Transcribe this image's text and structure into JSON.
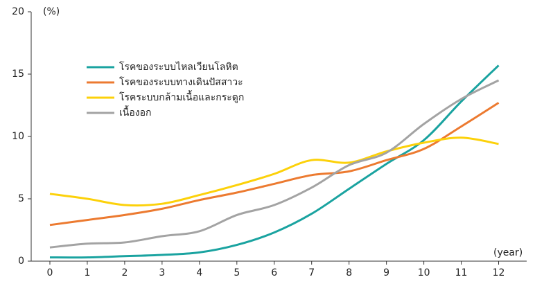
{
  "chart_data": {
    "type": "line",
    "y_label": "(%)",
    "x_label": "(year)",
    "x": [
      0,
      1,
      2,
      3,
      4,
      5,
      6,
      7,
      8,
      9,
      10,
      11,
      12
    ],
    "xlim": [
      -0.5,
      12.75
    ],
    "xticks": [
      0,
      1,
      2,
      3,
      4,
      5,
      6,
      7,
      8,
      9,
      10,
      11,
      12
    ],
    "ylim": [
      0,
      20
    ],
    "yticks": [
      0,
      5,
      10,
      15,
      20
    ],
    "legend": "upper-left",
    "series": [
      {
        "name": "โรคของระบบไหลเวียนโลหิต",
        "color": "#1aa3a0",
        "values": [
          0.3,
          0.3,
          0.4,
          0.5,
          0.7,
          1.3,
          2.3,
          3.8,
          5.8,
          7.8,
          9.7,
          12.8,
          15.7
        ]
      },
      {
        "name": "โรคของระบบทางเดินปัสสาวะ",
        "color": "#ec7a30",
        "values": [
          2.9,
          3.3,
          3.7,
          4.2,
          4.9,
          5.5,
          6.2,
          6.9,
          7.2,
          8.1,
          9.0,
          10.8,
          12.7
        ]
      },
      {
        "name": "โรคระบบกล้ามเนื้อและกระดูก",
        "color": "#fcd10a",
        "values": [
          5.4,
          5.0,
          4.5,
          4.6,
          5.3,
          6.1,
          7.0,
          8.1,
          7.9,
          8.8,
          9.5,
          9.9,
          9.4
        ]
      },
      {
        "name": "เนื้องอก",
        "color": "#a3a3a3",
        "values": [
          1.1,
          1.4,
          1.5,
          2.0,
          2.4,
          3.7,
          4.5,
          5.9,
          7.7,
          8.7,
          11.0,
          13.0,
          14.5
        ]
      }
    ]
  }
}
